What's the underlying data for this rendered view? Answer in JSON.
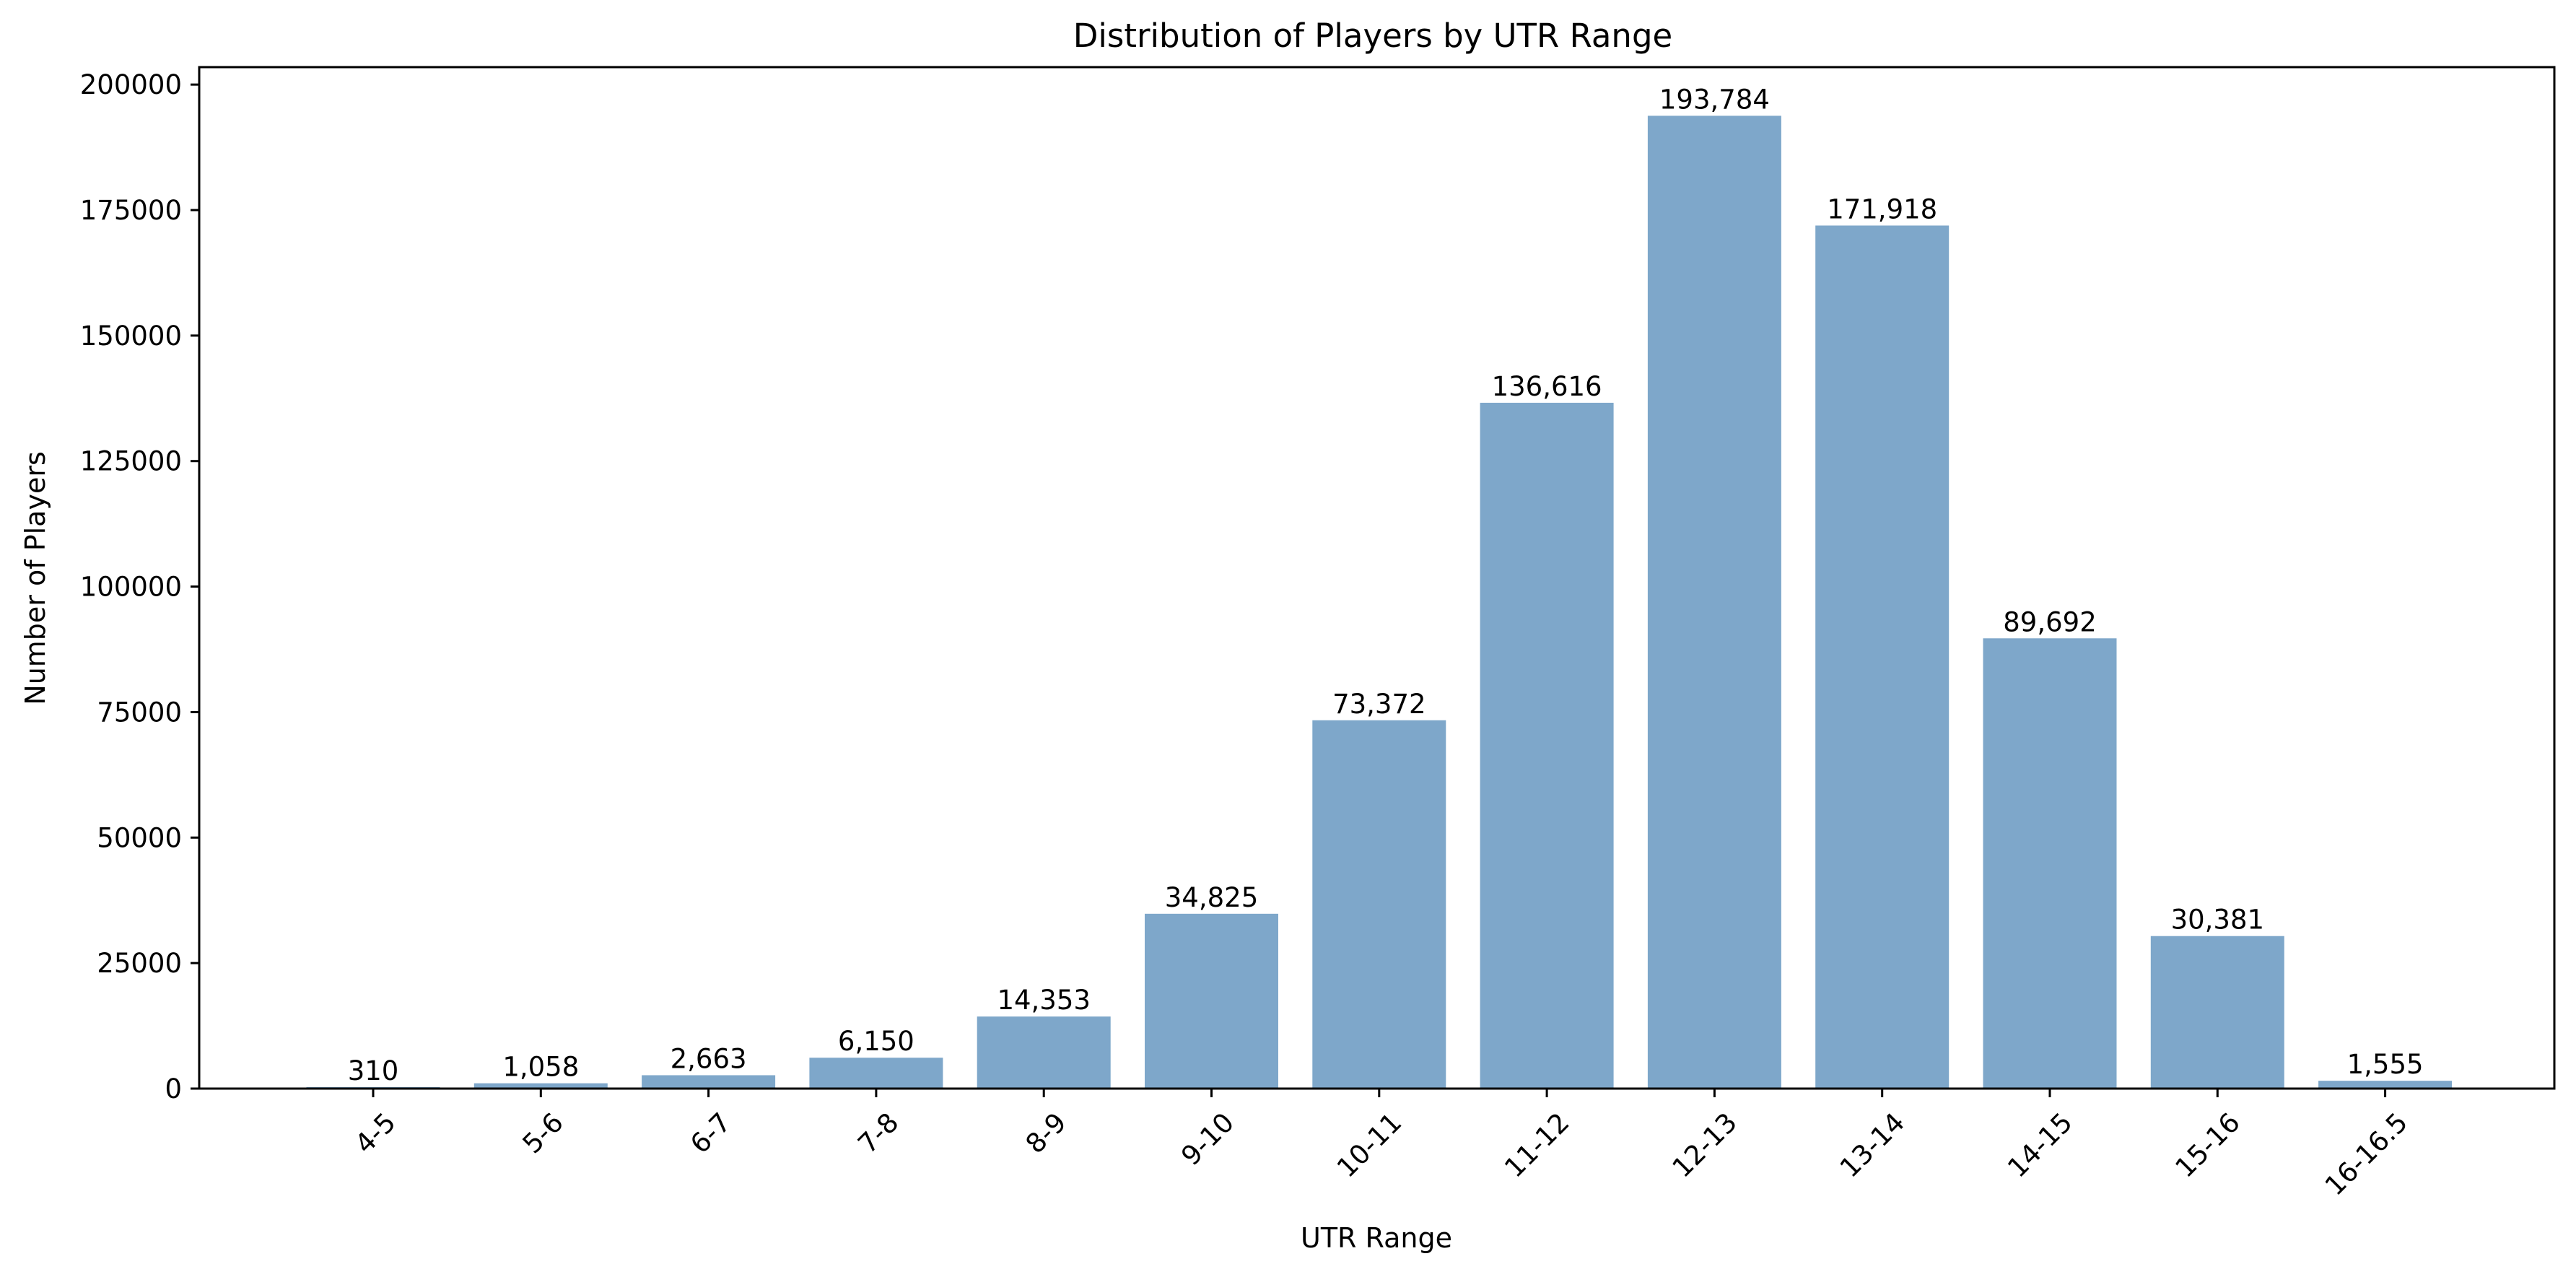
{
  "chart_data": {
    "type": "bar",
    "title": "Distribution of Players by UTR Range",
    "xlabel": "UTR Range",
    "ylabel": "Number of Players",
    "categories": [
      "4-5",
      "5-6",
      "6-7",
      "7-8",
      "8-9",
      "9-10",
      "10-11",
      "11-12",
      "12-13",
      "13-14",
      "14-15",
      "15-16",
      "16-16.5"
    ],
    "values": [
      310,
      1058,
      2663,
      6150,
      14353,
      34825,
      73372,
      136616,
      193784,
      171918,
      89692,
      30381,
      1555
    ],
    "data_labels": [
      "310",
      "1,058",
      "2,663",
      "6,150",
      "14,353",
      "34,825",
      "73,372",
      "136,616",
      "193,784",
      "171,918",
      "89,692",
      "30,381",
      "1,555"
    ],
    "ylim": [
      0,
      203474
    ],
    "yticks": [
      0,
      25000,
      50000,
      75000,
      100000,
      125000,
      150000,
      175000,
      200000
    ],
    "ytick_labels": [
      "0",
      "25000",
      "50000",
      "75000",
      "100000",
      "125000",
      "150000",
      "175000",
      "200000"
    ],
    "grid": false,
    "legend": "none",
    "xtick_rotation_deg": 45,
    "colors": {
      "bar": "#7ea7ca",
      "axis": "#000000",
      "text": "#000000",
      "background": "#ffffff"
    }
  }
}
